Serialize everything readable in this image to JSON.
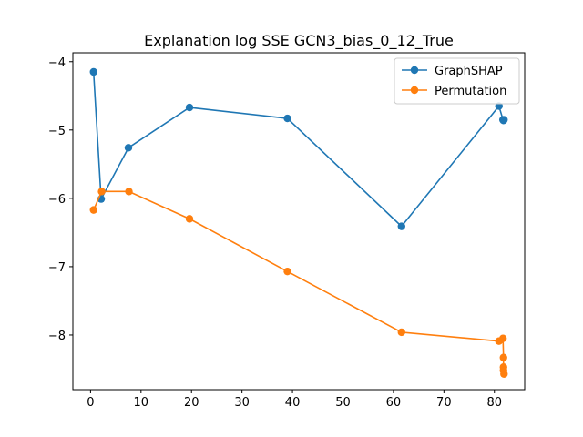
{
  "chart_data": {
    "type": "line",
    "title": "Explanation log SSE GCN3_bias_0_12_True",
    "xlabel": "",
    "ylabel": "",
    "xlim": [
      -3.5,
      86
    ],
    "ylim": [
      -8.8,
      -3.87
    ],
    "x_ticks": [
      0,
      10,
      20,
      30,
      40,
      50,
      60,
      70,
      80
    ],
    "y_ticks": [
      -4,
      -5,
      -6,
      -7,
      -8
    ],
    "y_tick_labels": [
      "−4",
      "−5",
      "−6",
      "−7",
      "−8"
    ],
    "grid": false,
    "legend_position": "upper right",
    "series": [
      {
        "name": "GraphSHAP",
        "color": "#1f77b4",
        "points": [
          [
            0.6,
            -4.15
          ],
          [
            2.1,
            -6.01
          ],
          [
            7.5,
            -5.26
          ],
          [
            19.6,
            -4.67
          ],
          [
            39.0,
            -4.83
          ],
          [
            61.6,
            -6.41
          ],
          [
            80.9,
            -4.65
          ],
          [
            81.7,
            -4.85
          ],
          [
            81.8,
            -4.86
          ],
          [
            81.9,
            -4.85
          ]
        ]
      },
      {
        "name": "Permutation",
        "color": "#ff7f0e",
        "points": [
          [
            0.6,
            -6.17
          ],
          [
            2.2,
            -5.9
          ],
          [
            7.6,
            -5.9
          ],
          [
            19.6,
            -6.3
          ],
          [
            39.0,
            -7.07
          ],
          [
            61.6,
            -7.96
          ],
          [
            80.9,
            -8.09
          ],
          [
            81.7,
            -8.05
          ],
          [
            81.8,
            -8.33
          ],
          [
            81.8,
            -8.47
          ],
          [
            81.8,
            -8.52
          ],
          [
            81.9,
            -8.57
          ]
        ]
      }
    ]
  }
}
